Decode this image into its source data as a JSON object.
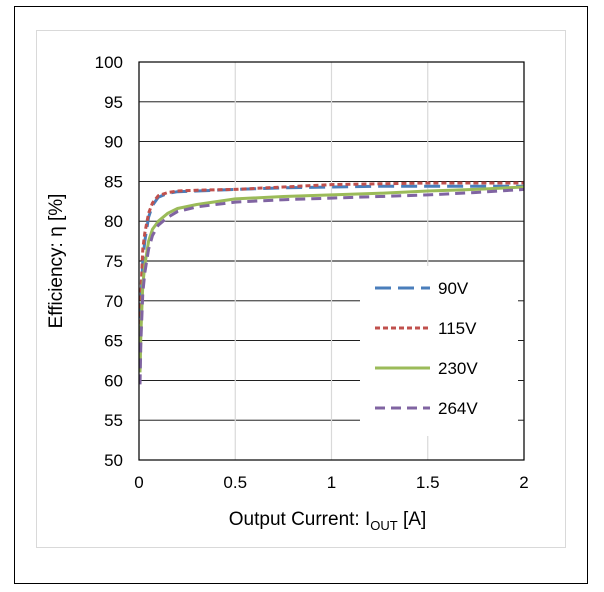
{
  "chart_data": {
    "type": "line",
    "xlabel_main": "Output Current: I",
    "xlabel_sub": "OUT",
    "xlabel_unit": " [A]",
    "ylabel": "Efficiency: η [%]",
    "xlim": [
      0,
      2
    ],
    "ylim": [
      50,
      100
    ],
    "x_ticks": [
      "0",
      "0.5",
      "1",
      "1.5",
      "2"
    ],
    "y_ticks": [
      "50",
      "55",
      "60",
      "65",
      "70",
      "75",
      "80",
      "85",
      "90",
      "95",
      "100"
    ],
    "grid": "both",
    "legend_position": "right",
    "series": [
      {
        "name": "90V",
        "color": "#4a7ebb",
        "style": "long-dash",
        "x": [
          0.005,
          0.01,
          0.02,
          0.03,
          0.05,
          0.07,
          0.1,
          0.15,
          0.2,
          0.3,
          0.5,
          0.75,
          1.0,
          1.25,
          1.5,
          1.75,
          2.0
        ],
        "y": [
          62,
          70,
          75,
          77.5,
          80.5,
          82,
          83,
          83.5,
          83.7,
          83.8,
          84.0,
          84.2,
          84.3,
          84.4,
          84.4,
          84.4,
          84.4
        ]
      },
      {
        "name": "115V",
        "color": "#c0504d",
        "style": "short-dash",
        "x": [
          0.005,
          0.01,
          0.02,
          0.03,
          0.05,
          0.07,
          0.1,
          0.15,
          0.2,
          0.3,
          0.5,
          0.75,
          1.0,
          1.25,
          1.5,
          1.75,
          2.0
        ],
        "y": [
          63,
          71,
          76.5,
          78.5,
          81,
          82.3,
          83.2,
          83.6,
          83.8,
          83.9,
          84.0,
          84.3,
          84.6,
          84.7,
          84.8,
          84.8,
          84.8
        ]
      },
      {
        "name": "230V",
        "color": "#9bbb59",
        "style": "solid",
        "x": [
          0.005,
          0.01,
          0.02,
          0.03,
          0.05,
          0.07,
          0.1,
          0.15,
          0.2,
          0.3,
          0.5,
          0.75,
          1.0,
          1.25,
          1.5,
          1.75,
          2.0
        ],
        "y": [
          61,
          66,
          72,
          74.5,
          77.5,
          79,
          80,
          81,
          81.6,
          82.1,
          82.8,
          83.1,
          83.3,
          83.5,
          83.8,
          84.0,
          84.3
        ]
      },
      {
        "name": "264V",
        "color": "#8064a2",
        "style": "medium-dash",
        "x": [
          0.005,
          0.01,
          0.02,
          0.03,
          0.05,
          0.07,
          0.1,
          0.15,
          0.2,
          0.3,
          0.5,
          0.75,
          1.0,
          1.25,
          1.5,
          1.75,
          2.0
        ],
        "y": [
          59.5,
          65,
          71,
          73.5,
          76.5,
          78.2,
          79.5,
          80.5,
          81.2,
          81.8,
          82.4,
          82.7,
          82.9,
          83.1,
          83.3,
          83.6,
          84.0
        ]
      }
    ]
  }
}
